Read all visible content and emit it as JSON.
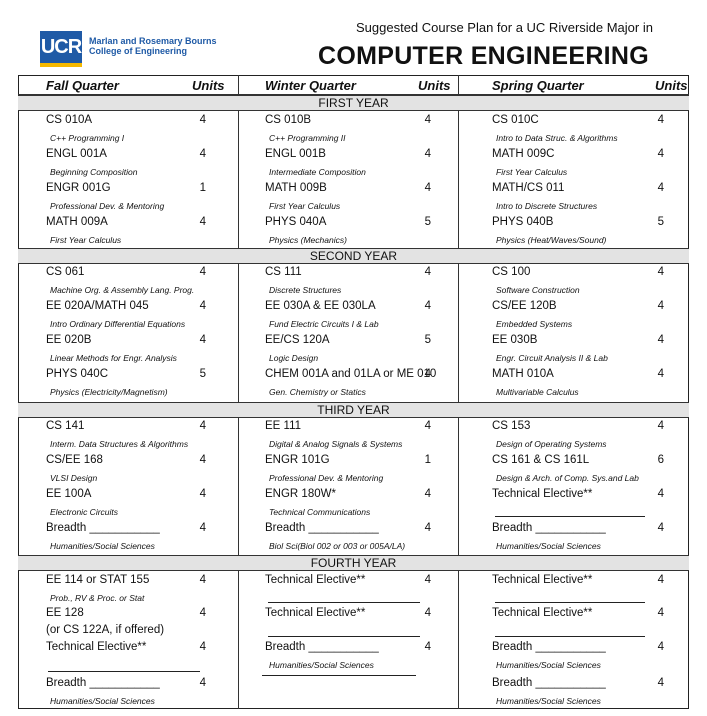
{
  "logo": {
    "mark": "UCR",
    "line1": "Marlan and Rosemary Bourns",
    "line2": "College of Engineering"
  },
  "header": {
    "subtitle": "Suggested Course Plan for a UC Riverside Major in",
    "title": "COMPUTER ENGINEERING"
  },
  "columns": {
    "fall": "Fall Quarter",
    "fall_units": "Units",
    "winter": "Winter Quarter",
    "winter_units": "Units",
    "spring": "Spring Quarter",
    "spring_units": "Units"
  },
  "years": [
    "FIRST YEAR",
    "SECOND YEAR",
    "THIRD YEAR",
    "FOURTH YEAR"
  ],
  "y1": {
    "fall": [
      {
        "course": "CS 010A",
        "units": "4",
        "desc": "C++ Programming I"
      },
      {
        "course": "ENGL 001A",
        "units": "4",
        "desc": "Beginning Composition"
      },
      {
        "course": "ENGR 001G",
        "units": "1",
        "desc": "Professional Dev. & Mentoring"
      },
      {
        "course": "MATH 009A",
        "units": "4",
        "desc": "First Year Calculus"
      }
    ],
    "winter": [
      {
        "course": "CS 010B",
        "units": "4",
        "desc": "C++ Programming II"
      },
      {
        "course": "ENGL 001B",
        "units": "4",
        "desc": "Intermediate Composition"
      },
      {
        "course": "MATH 009B",
        "units": "4",
        "desc": "First Year Calculus"
      },
      {
        "course": "PHYS 040A",
        "units": "5",
        "desc": "Physics (Mechanics)"
      }
    ],
    "spring": [
      {
        "course": "CS  010C",
        "units": "4",
        "desc": "Intro to Data Struc. & Algorithms"
      },
      {
        "course": "MATH 009C",
        "units": "4",
        "desc": "First Year Calculus"
      },
      {
        "course": "MATH/CS 011",
        "units": "4",
        "desc": "Intro to Discrete Structures"
      },
      {
        "course": "PHYS 040B",
        "units": "5",
        "desc": "Physics (Heat/Waves/Sound)"
      }
    ]
  },
  "y2": {
    "fall": [
      {
        "course": "CS  061",
        "units": "4",
        "desc": "Machine Org. & Assembly Lang. Prog."
      },
      {
        "course": "EE 020A/MATH 045",
        "units": "4",
        "desc": "Intro Ordinary Differential Equations"
      },
      {
        "course": "EE  020B",
        "units": "4",
        "desc": "Linear Methods for Engr. Analysis"
      },
      {
        "course": "PHYS 040C",
        "units": "5",
        "desc": "Physics (Electricity/Magnetism)"
      }
    ],
    "winter": [
      {
        "course": "CS 111",
        "units": "4",
        "desc": "Discrete Structures"
      },
      {
        "course": "EE 030A & EE 030LA",
        "units": "4",
        "desc": "Fund Electric Circuits I & Lab"
      },
      {
        "course": "EE/CS 120A",
        "units": "5",
        "desc": "Logic Design"
      },
      {
        "course": "CHEM 001A and 01LA or ME 010",
        "units": "4",
        "desc": "Gen. Chemistry or Statics"
      }
    ],
    "spring": [
      {
        "course": "CS 100",
        "units": "4",
        "desc": "Software Construction"
      },
      {
        "course": "CS/EE 120B",
        "units": "4",
        "desc": "Embedded Systems"
      },
      {
        "course": "EE 030B",
        "units": "4",
        "desc": "Engr. Circuit Analysis II & Lab"
      },
      {
        "course": "MATH 010A",
        "units": "4",
        "desc": "Multivariable Calculus"
      }
    ]
  },
  "y3": {
    "fall": [
      {
        "course": "CS 141",
        "units": "4",
        "desc": "Interm. Data Structures & Algorithms"
      },
      {
        "course": "CS/EE 168",
        "units": "4",
        "desc": "VLSI Design"
      },
      {
        "course": "EE 100A",
        "units": "4",
        "desc": "Electronic Circuits"
      },
      {
        "course": "Breadth ___________",
        "units": "4",
        "desc": "Humanities/Social Sciences"
      }
    ],
    "winter": [
      {
        "course": "EE 111",
        "units": "4",
        "desc": "Digital & Analog Signals & Systems"
      },
      {
        "course": "ENGR 101G",
        "units": "1",
        "desc": "Professional Dev. & Mentoring"
      },
      {
        "course": "ENGR 180W*",
        "units": "4",
        "desc": "Technical Communications"
      },
      {
        "course": "Breadth ___________",
        "units": "4",
        "desc": "Biol Sci(Biol 002 or 003 or 005A/LA)"
      }
    ],
    "spring": [
      {
        "course": "CS 153",
        "units": "4",
        "desc": "Design of Operating Systems"
      },
      {
        "course": "CS 161 & CS 161L",
        "units": "6",
        "desc": "Design & Arch. of Comp. Sys.and Lab"
      },
      {
        "course": "Technical Elective**",
        "units": "4",
        "desc": ""
      },
      {
        "course": "Breadth ___________",
        "units": "4",
        "desc": "Humanities/Social Sciences"
      }
    ]
  },
  "y4": {
    "fall": [
      {
        "course": "EE 114 or STAT 155",
        "units": "4",
        "desc": "Prob., RV & Proc. or Stat"
      },
      {
        "course": "EE 128",
        "units": "4",
        "desc": ""
      },
      {
        "course": "(or CS 122A, if offered)",
        "units": "",
        "desc": ""
      },
      {
        "course": "Technical Elective**",
        "units": "4",
        "desc": ""
      },
      {
        "course": "Breadth ___________",
        "units": "4",
        "desc": "Humanities/Social Sciences"
      }
    ],
    "winter": [
      {
        "course": "Technical Elective**",
        "units": "4",
        "desc": ""
      },
      {
        "course": "Technical Elective**",
        "units": "4",
        "desc": ""
      },
      {
        "course": "Breadth ___________",
        "units": "4",
        "desc": "Humanities/Social Sciences"
      }
    ],
    "spring": [
      {
        "course": "Technical Elective**",
        "units": "4",
        "desc": ""
      },
      {
        "course": "Technical Elective**",
        "units": "4",
        "desc": ""
      },
      {
        "course": "Breadth ___________",
        "units": "4",
        "desc": "Humanities/Social Sciences"
      },
      {
        "course": "Breadth ___________",
        "units": "4",
        "desc": "Humanities/Social Sciences"
      }
    ]
  }
}
